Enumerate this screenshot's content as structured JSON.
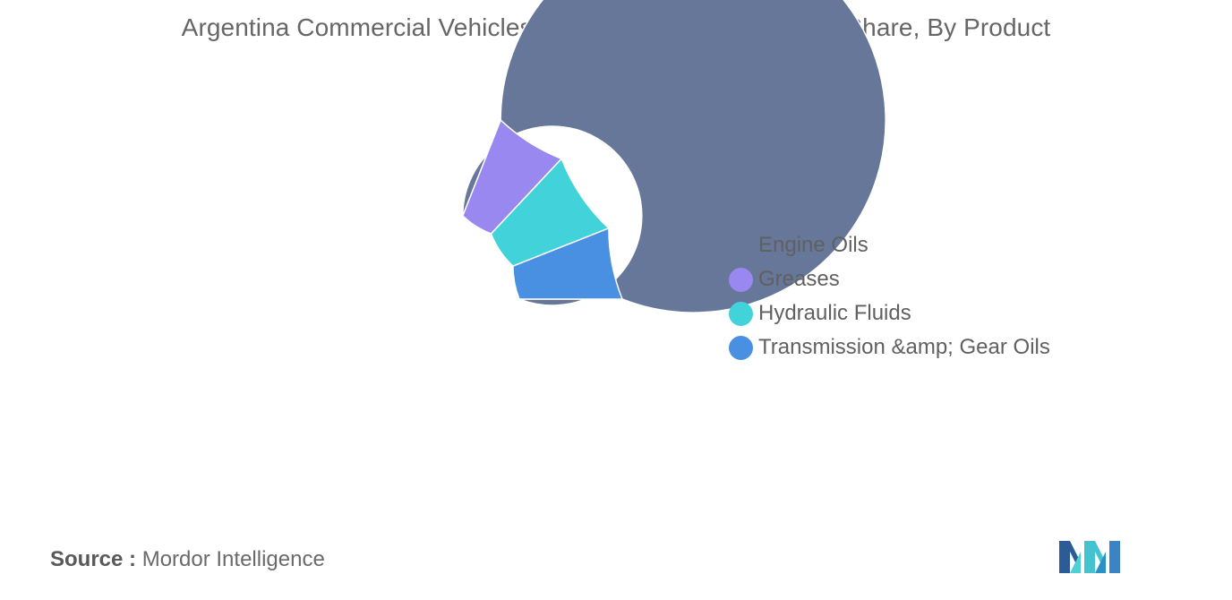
{
  "title": "Argentina Commercial Vehicles Lubricants Market, Volume Share, By Product Type, 2020",
  "source_label": "Source :",
  "source_text": "Mordor Intelligence",
  "logo_icon": "mordor-intelligence-logo",
  "chart_data": {
    "type": "pie",
    "title": "Argentina Commercial Vehicles Lubricants Market, Volume Share, By Product Type, 2020",
    "categories": [
      "Engine Oils",
      "Greases",
      "Hydraulic Fluids",
      "Transmission &amp; Gear Oils"
    ],
    "values": [
      81,
      6,
      7,
      6
    ],
    "colors": [
      "#667799",
      "#9988f0",
      "#42d3da",
      "#4a90e2"
    ],
    "donut": true,
    "legend_position": "right",
    "start_angle_degrees": 90,
    "direction": "clockwise-from-3-oclock"
  }
}
